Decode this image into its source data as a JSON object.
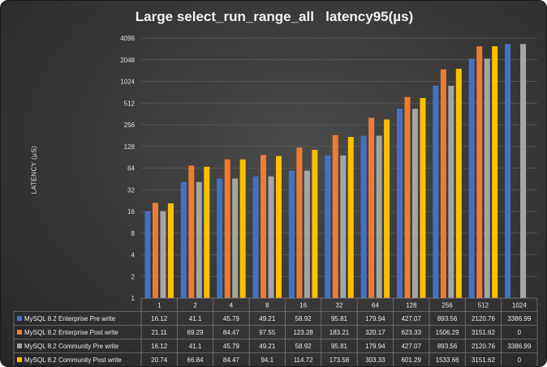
{
  "chart_data": {
    "type": "bar",
    "title": "Large select_run_range_all   latency95(µs)",
    "ylabel": "LATENCY (µS)",
    "xlabel": "",
    "yscale": "log2",
    "ylim": [
      1,
      4096
    ],
    "yticks": [
      "1",
      "2",
      "4",
      "8",
      "16",
      "32",
      "64",
      "128",
      "256",
      "512",
      "1024",
      "2048",
      "4096"
    ],
    "grid": true,
    "legend": "table-below",
    "categories": [
      "1",
      "2",
      "4",
      "8",
      "16",
      "32",
      "64",
      "128",
      "256",
      "512",
      "1024"
    ],
    "series": [
      {
        "name": "MySQL 8.2 Enterprise Pre write",
        "color": "#4472c4",
        "values": [
          16.12,
          41.1,
          45.79,
          49.21,
          58.92,
          95.81,
          179.94,
          427.07,
          893.56,
          2120.76,
          3386.99
        ],
        "labels": [
          "16.12",
          "41.1",
          "45.79",
          "49.21",
          "58.92",
          "95.81",
          "179.94",
          "427.07",
          "893.56",
          "2120.76",
          "3386.99"
        ]
      },
      {
        "name": "MySQL 8.2 Enterprise Post write",
        "color": "#ed7d31",
        "values": [
          21.11,
          69.29,
          84.47,
          97.55,
          123.28,
          183.21,
          320.17,
          623.33,
          1506.29,
          3151.62,
          0
        ],
        "labels": [
          "21.11",
          "69.29",
          "84.47",
          "97.55",
          "123.28",
          "183.21",
          "320.17",
          "623.33",
          "1506.29",
          "3151.62",
          "0"
        ]
      },
      {
        "name": "MySQL 8.2 Community Pre write",
        "color": "#a5a5a5",
        "values": [
          16.12,
          41.1,
          45.79,
          49.21,
          58.92,
          95.81,
          179.94,
          427.07,
          893.56,
          2120.76,
          3386.99
        ],
        "labels": [
          "16.12",
          "41.1",
          "45.79",
          "49.21",
          "58.92",
          "95.81",
          "179.94",
          "427.07",
          "893.56",
          "2120.76",
          "3386.99"
        ]
      },
      {
        "name": "MySQL 8.2 Community Post write",
        "color": "#ffc000",
        "values": [
          20.74,
          66.84,
          84.47,
          94.1,
          114.72,
          173.58,
          303.33,
          601.29,
          1533.66,
          3151.62,
          0
        ],
        "labels": [
          "20.74",
          "66.84",
          "84.47",
          "94.1",
          "114.72",
          "173.58",
          "303.33",
          "601.29",
          "1533.66",
          "3151.62",
          "0"
        ]
      }
    ]
  }
}
